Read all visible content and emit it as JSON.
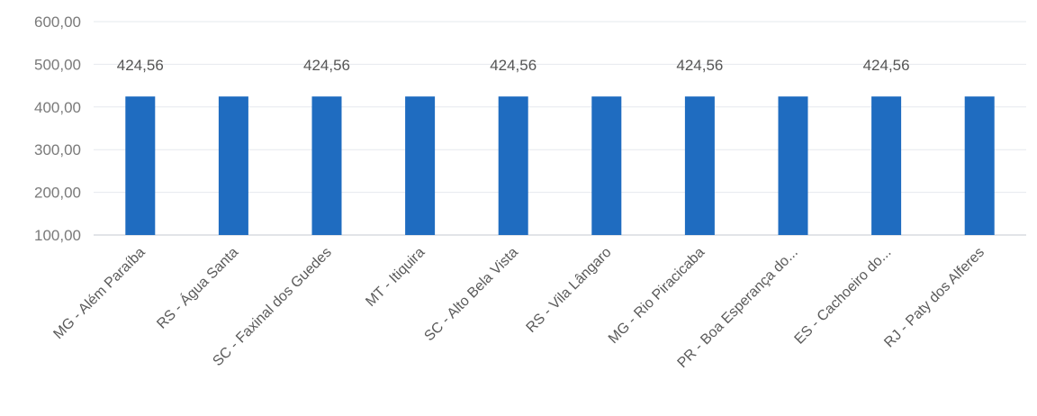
{
  "chart_data": {
    "type": "bar",
    "categories": [
      "MG - Além Paraíba",
      "RS - Água Santa",
      "SC - Faxinal dos Guedes",
      "MT - Itiquira",
      "SC - Alto Bela Vista",
      "RS - Vila Lângaro",
      "MG - Rio Piracicaba",
      "PR - Boa Esperança do...",
      "ES - Cachoeiro do...",
      "RJ - Paty dos Alferes"
    ],
    "values": [
      424.56,
      424.56,
      424.56,
      424.56,
      424.56,
      424.56,
      424.56,
      424.56,
      424.56,
      424.56
    ],
    "data_labels": [
      "424,56",
      "",
      "424,56",
      "",
      "424,56",
      "",
      "424,56",
      "",
      "424,56",
      ""
    ],
    "yticks": [
      {
        "value": 100,
        "label": "100,00"
      },
      {
        "value": 200,
        "label": "200,00"
      },
      {
        "value": 300,
        "label": "300,00"
      },
      {
        "value": 400,
        "label": "400,00"
      },
      {
        "value": 500,
        "label": "500,00"
      },
      {
        "value": 600,
        "label": "600,00"
      }
    ],
    "ylim": [
      100,
      600
    ],
    "grid": true,
    "title": "",
    "xlabel": "",
    "ylabel": "",
    "colors": {
      "bar": "#1f6cc0",
      "grid": "#e6e9ee",
      "tick_text": "#7a7a7a"
    }
  }
}
